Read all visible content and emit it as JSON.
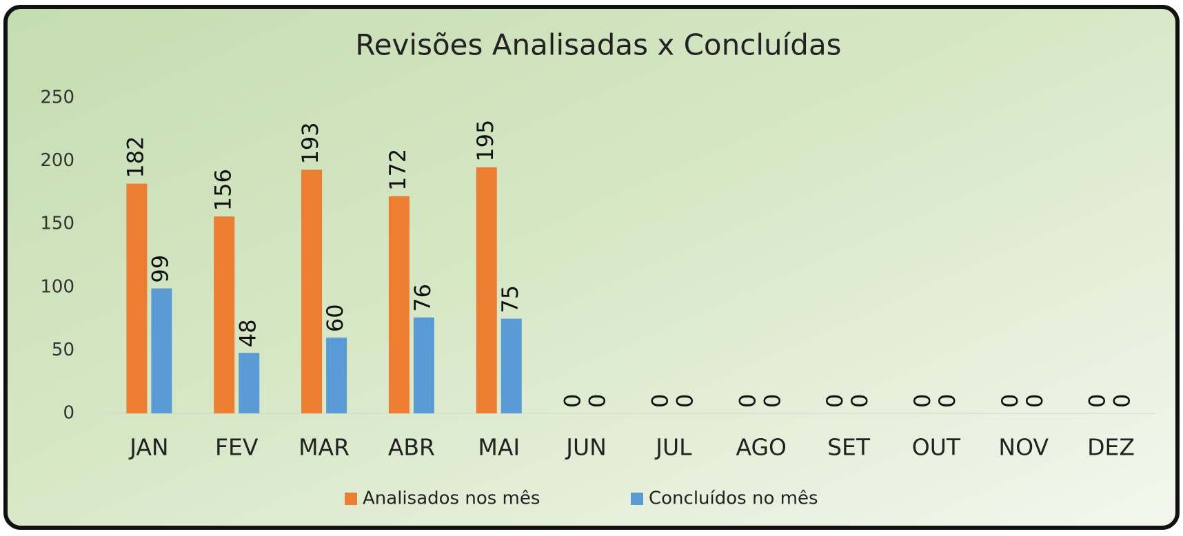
{
  "chart_data": {
    "type": "bar",
    "title": "Revisões  Analisadas x Concluídas",
    "categories": [
      "JAN",
      "FEV",
      "MAR",
      "ABR",
      "MAI",
      "JUN",
      "JUL",
      "AGO",
      "SET",
      "OUT",
      "NOV",
      "DEZ"
    ],
    "series": [
      {
        "name": "Analisados nos mês",
        "color": "#ed7d31",
        "values": [
          182,
          156,
          193,
          172,
          195,
          0,
          0,
          0,
          0,
          0,
          0,
          0
        ]
      },
      {
        "name": "Concluídos no mês",
        "color": "#5b9bd5",
        "values": [
          99,
          48,
          60,
          76,
          75,
          0,
          0,
          0,
          0,
          0,
          0,
          0
        ]
      }
    ],
    "ylim": [
      0,
      250
    ],
    "yticks": [
      0,
      50,
      100,
      150,
      200,
      250
    ],
    "grid": false,
    "legend": "bottom"
  }
}
